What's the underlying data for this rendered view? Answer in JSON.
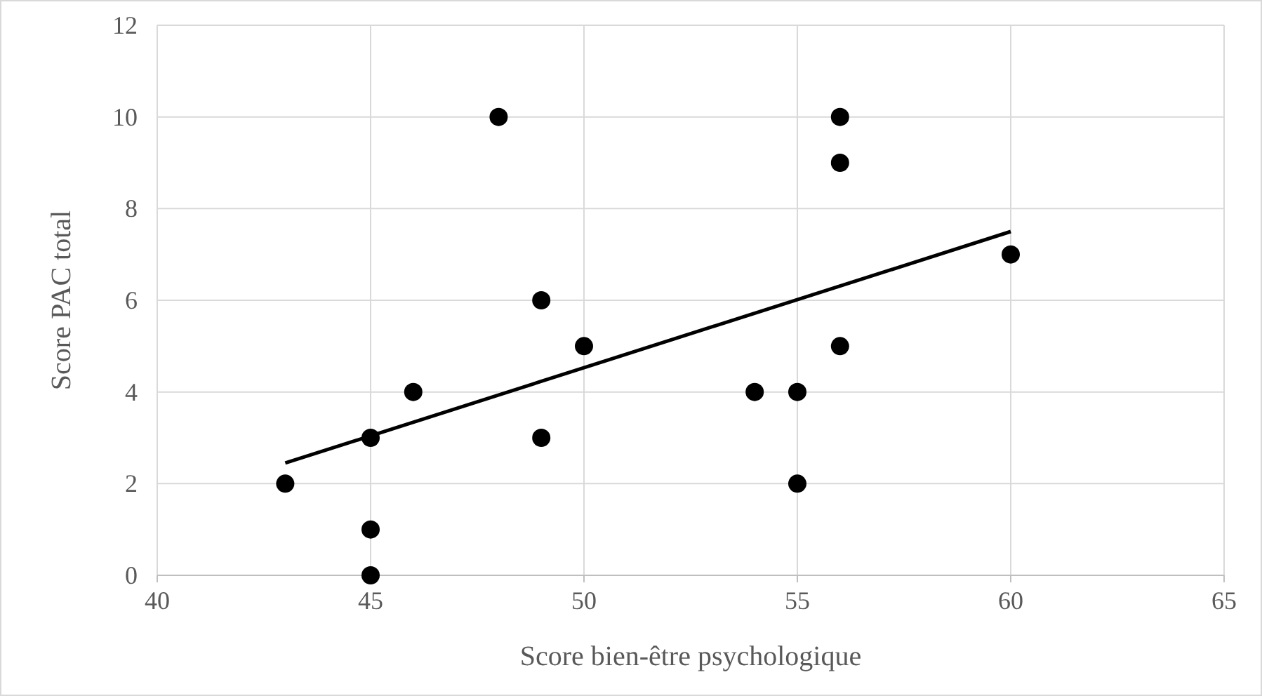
{
  "chart_data": {
    "type": "scatter",
    "xlabel": "Score bien-être psychologique",
    "ylabel": "Score PAC total",
    "xlim": [
      40,
      65
    ],
    "xticks": [
      40,
      45,
      50,
      55,
      60,
      65
    ],
    "ylim": [
      0,
      12
    ],
    "yticks": [
      0,
      2,
      4,
      6,
      8,
      10,
      12
    ],
    "grid": true,
    "marker": "circle",
    "series": [
      {
        "color": "#000000",
        "x": [
          43,
          45,
          45,
          45,
          46,
          48,
          49,
          49,
          50,
          54,
          55,
          55,
          56,
          56,
          56,
          60
        ],
        "values": [
          2,
          3,
          1,
          0,
          4,
          10,
          6,
          3,
          5,
          4,
          4,
          2,
          10,
          9,
          5,
          7
        ]
      },
      {
        "type": "line",
        "color": "#000000",
        "marker": "none",
        "x": [
          43,
          60
        ],
        "values": [
          2.45,
          7.5
        ]
      }
    ]
  }
}
